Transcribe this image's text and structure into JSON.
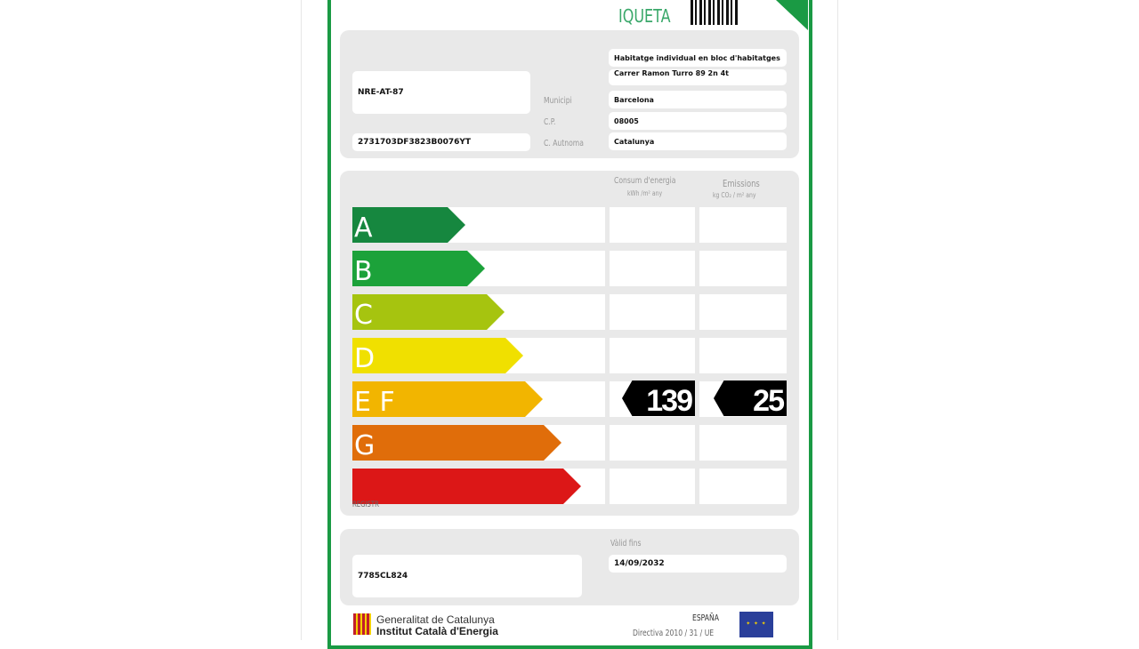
{
  "header": {
    "title": "IQUETA"
  },
  "info": {
    "reference": "NRE-AT-87",
    "cadastral_ref": "2731703DF3823B0076YT",
    "building_type": "Habitatge individual en bloc d'habitatges",
    "address": "Carrer Ramon Turro 89 2n 4t",
    "municipi_label": "Municipi",
    "municipi": "Barcelona",
    "cp_label": "C.P.",
    "cp": "08005",
    "autonoma_label": "C. Autnoma",
    "autonoma": "Catalunya"
  },
  "scale": {
    "energy_header": "Consum d'energia",
    "energy_unit": "kWh /m² any",
    "emissions_header": "Emissions",
    "emissions_unit": "kg CO₂ / m² any",
    "classes": [
      {
        "label": "A",
        "color": "#16873f"
      },
      {
        "label": "B",
        "color": "#1ca23a"
      },
      {
        "label": "C",
        "color": "#a6c40f"
      },
      {
        "label": "D",
        "color": "#f0e000"
      },
      {
        "label": "E F",
        "color": "#f2b500"
      },
      {
        "label": "G",
        "color": "#e06d0a"
      },
      {
        "label": "",
        "color": "#dc1717"
      }
    ],
    "rating_row": "E F",
    "energy_value": "139",
    "emissions_value": "25",
    "footer_label": "REGISTR"
  },
  "validity": {
    "registry": "7785CL824",
    "valid_label": "Vàlid fins",
    "valid_until": "14/09/2032"
  },
  "footer": {
    "org1": "Generalitat de Catalunya",
    "org2": "Institut Català d'Energia",
    "country": "ESPAÑA",
    "directive": "Directiva 2010 / 31 / UE"
  }
}
